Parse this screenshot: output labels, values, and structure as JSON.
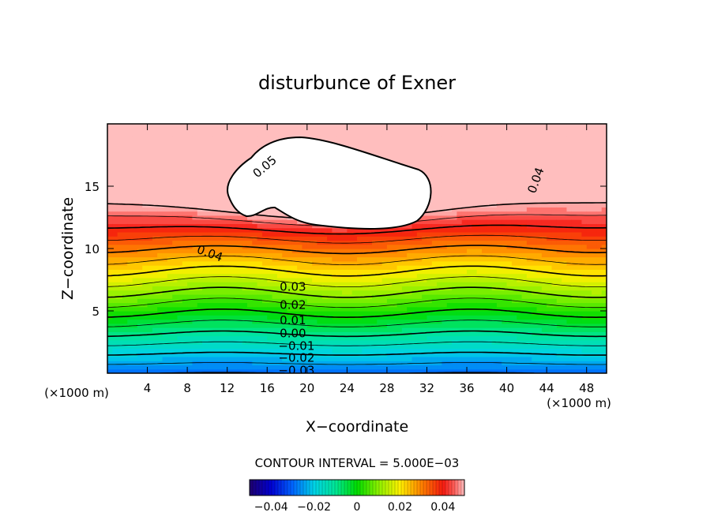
{
  "chart_data": {
    "type": "contour",
    "title": "disturbunce of Exner",
    "xlabel": "X−coordinate",
    "ylabel": "Z−coordinate",
    "x_unit": "(×1000 m)",
    "y_unit": "(×1000 m)",
    "xlim": [
      0,
      50
    ],
    "ylim": [
      0,
      20
    ],
    "x_ticks": [
      4,
      8,
      12,
      16,
      20,
      24,
      28,
      32,
      36,
      40,
      44,
      48
    ],
    "y_ticks": [
      5,
      10,
      15
    ],
    "contour_interval_label": "CONTOUR INTERVAL = 5.000E−03",
    "value_range": [
      -0.05,
      0.05
    ],
    "contour_labels": [
      {
        "text": "0.05",
        "x": 14.5,
        "z": 15.8
      },
      {
        "text": "0.04",
        "x": 42.3,
        "z": 14.3
      },
      {
        "text": "0.04",
        "x": 8.8,
        "z": 10.1
      },
      {
        "text": "0.03",
        "x": 17.0,
        "z": 7.0
      },
      {
        "text": "0.02",
        "x": 17.0,
        "z": 5.55
      },
      {
        "text": "0.01",
        "x": 17.0,
        "z": 4.3
      },
      {
        "text": "0.00",
        "x": 17.0,
        "z": 3.25
      },
      {
        "text": "−0.01",
        "x": 17.0,
        "z": 2.25
      },
      {
        "text": "−0.02",
        "x": 17.0,
        "z": 1.3
      },
      {
        "text": "−0.03",
        "x": 17.0,
        "z": 0.3
      }
    ],
    "colorbar": {
      "ticks": [
        "−0.04",
        "−0.02",
        "0",
        "0.02",
        "0.04"
      ],
      "tick_values": [
        -0.04,
        -0.02,
        0,
        0.02,
        0.04
      ]
    },
    "max_region_above": 0.05
  }
}
